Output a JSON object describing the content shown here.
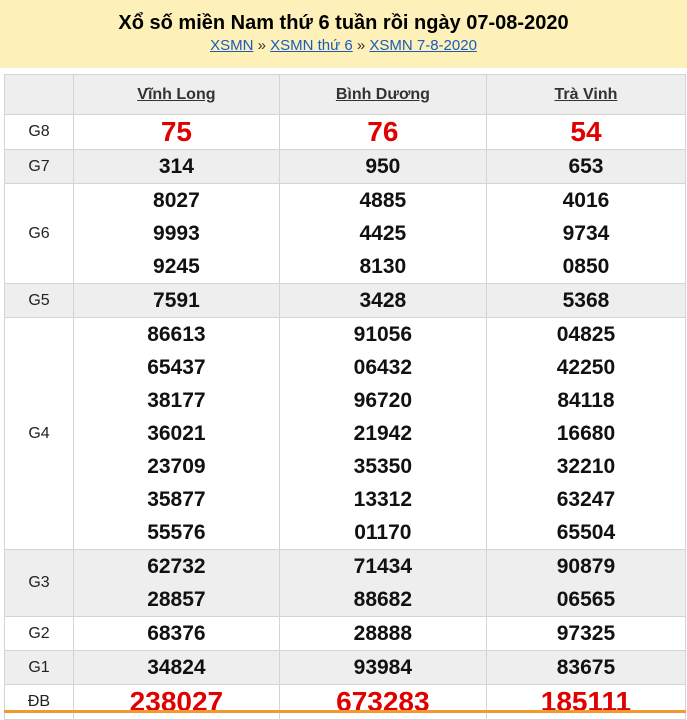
{
  "header": {
    "title": "Xổ số miền Nam thứ 6 tuần rồi ngày 07-08-2020",
    "breadcrumbs": [
      "XSMN",
      "XSMN thứ 6",
      "XSMN 7-8-2020"
    ],
    "separator": "»"
  },
  "provinces": [
    "Vĩnh Long",
    "Bình Dương",
    "Trà Vinh"
  ],
  "prizes": [
    {
      "label": "G8",
      "values": [
        [
          "75"
        ],
        [
          "76"
        ],
        [
          "54"
        ]
      ]
    },
    {
      "label": "G7",
      "values": [
        [
          "314"
        ],
        [
          "950"
        ],
        [
          "653"
        ]
      ]
    },
    {
      "label": "G6",
      "values": [
        [
          "8027",
          "9993",
          "9245"
        ],
        [
          "4885",
          "4425",
          "8130"
        ],
        [
          "4016",
          "9734",
          "0850"
        ]
      ]
    },
    {
      "label": "G5",
      "values": [
        [
          "7591"
        ],
        [
          "3428"
        ],
        [
          "5368"
        ]
      ]
    },
    {
      "label": "G4",
      "values": [
        [
          "86613",
          "65437",
          "38177",
          "36021",
          "23709",
          "35877",
          "55576"
        ],
        [
          "91056",
          "06432",
          "96720",
          "21942",
          "35350",
          "13312",
          "01170"
        ],
        [
          "04825",
          "42250",
          "84118",
          "16680",
          "32210",
          "63247",
          "65504"
        ]
      ]
    },
    {
      "label": "G3",
      "values": [
        [
          "62732",
          "28857"
        ],
        [
          "71434",
          "88682"
        ],
        [
          "90879",
          "06565"
        ]
      ]
    },
    {
      "label": "G2",
      "values": [
        [
          "68376"
        ],
        [
          "28888"
        ],
        [
          "97325"
        ]
      ]
    },
    {
      "label": "G1",
      "values": [
        [
          "34824"
        ],
        [
          "93984"
        ],
        [
          "83675"
        ]
      ]
    },
    {
      "label": "ĐB",
      "values": [
        [
          "238027"
        ],
        [
          "673283"
        ],
        [
          "185111"
        ]
      ]
    }
  ],
  "colors": {
    "header_bg": "#fdf0b9",
    "highlight": "#e00000",
    "link": "#1a5bbf",
    "accent_border": "#f39a2e"
  }
}
